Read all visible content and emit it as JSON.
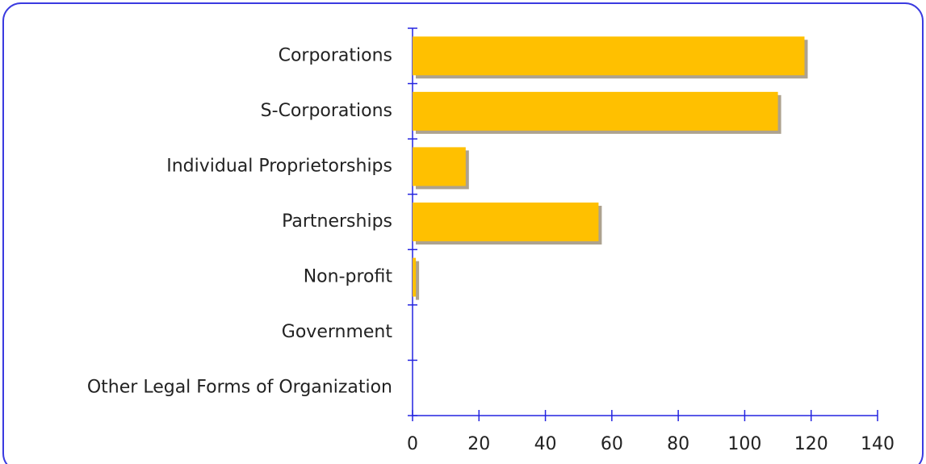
{
  "chart_data": {
    "type": "bar",
    "orientation": "horizontal",
    "categories": [
      "Corporations",
      "S-Corporations",
      "Individual Proprietorships",
      "Partnerships",
      "Non-profit",
      "Government",
      "Other Legal Forms of Organization"
    ],
    "values": [
      118,
      110,
      16,
      56,
      1,
      0,
      0
    ],
    "color": "#ffc000",
    "xlim": [
      0,
      140
    ],
    "xticks": [
      0,
      20,
      40,
      60,
      80,
      100,
      120,
      140
    ],
    "grid": false
  }
}
